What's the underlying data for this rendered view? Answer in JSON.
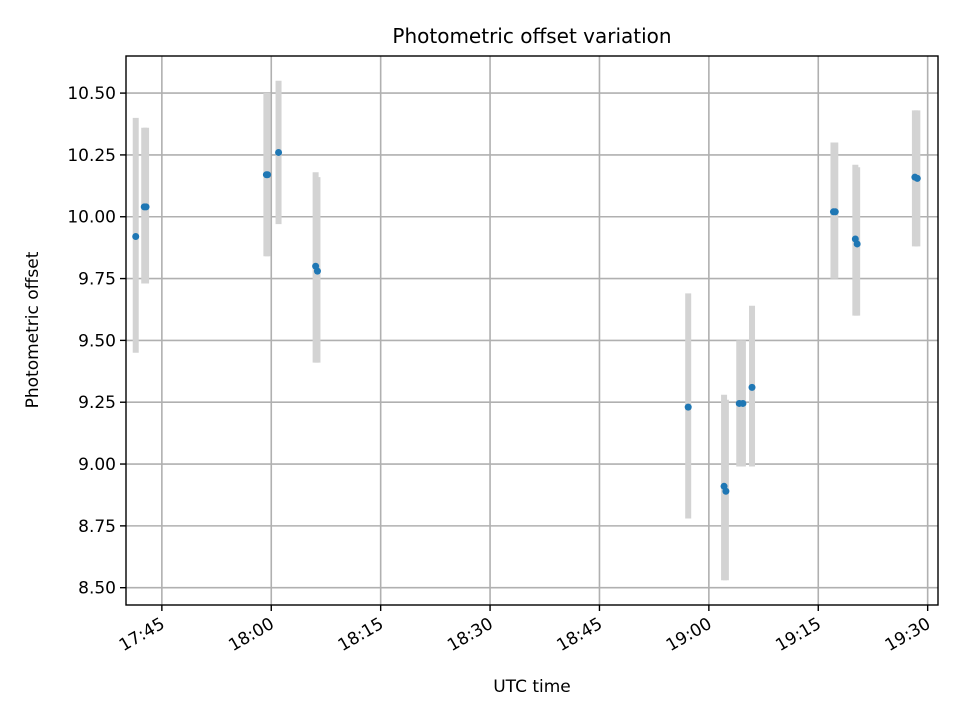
{
  "chart_data": {
    "type": "scatter",
    "title": "Photometric offset variation",
    "xlabel": "UTC time",
    "ylabel": "Photometric offset",
    "x_tick_labels": [
      "17:45",
      "18:00",
      "18:15",
      "18:30",
      "18:45",
      "19:00",
      "19:15",
      "19:30"
    ],
    "y_tick_labels": [
      "8.50",
      "8.75",
      "9.00",
      "9.25",
      "9.50",
      "9.75",
      "10.00",
      "10.25",
      "10.50"
    ],
    "ylim": [
      8.43,
      10.65
    ],
    "xlim": [
      "17:40:05",
      "19:31:25"
    ],
    "grid": true,
    "colors": {
      "point": "#1f77b4",
      "errorbar": "#d3d3d3"
    },
    "points": [
      {
        "x": "17:41:25",
        "y": 9.92,
        "ylow": 9.45,
        "yhigh": 10.4
      },
      {
        "x": "17:42:35",
        "y": 10.04,
        "ylow": 9.73,
        "yhigh": 10.36
      },
      {
        "x": "17:42:50",
        "y": 10.04,
        "ylow": 9.73,
        "yhigh": 10.36
      },
      {
        "x": "17:59:20",
        "y": 10.17,
        "ylow": 9.84,
        "yhigh": 10.5
      },
      {
        "x": "17:59:30",
        "y": 10.17,
        "ylow": 9.84,
        "yhigh": 10.5
      },
      {
        "x": "18:01:00",
        "y": 10.26,
        "ylow": 9.97,
        "yhigh": 10.55
      },
      {
        "x": "18:06:05",
        "y": 9.8,
        "ylow": 9.41,
        "yhigh": 10.18
      },
      {
        "x": "18:06:20",
        "y": 9.78,
        "ylow": 9.41,
        "yhigh": 10.16
      },
      {
        "x": "18:57:10",
        "y": 9.23,
        "ylow": 8.78,
        "yhigh": 9.69
      },
      {
        "x": "19:02:05",
        "y": 8.91,
        "ylow": 8.53,
        "yhigh": 9.28
      },
      {
        "x": "19:02:20",
        "y": 8.89,
        "ylow": 8.53,
        "yhigh": 9.26
      },
      {
        "x": "19:04:10",
        "y": 9.245,
        "ylow": 8.99,
        "yhigh": 9.5
      },
      {
        "x": "19:04:40",
        "y": 9.245,
        "ylow": 8.99,
        "yhigh": 9.5
      },
      {
        "x": "19:05:55",
        "y": 9.31,
        "ylow": 8.99,
        "yhigh": 9.64
      },
      {
        "x": "19:17:05",
        "y": 10.02,
        "ylow": 9.75,
        "yhigh": 10.3
      },
      {
        "x": "19:17:20",
        "y": 10.02,
        "ylow": 9.75,
        "yhigh": 10.3
      },
      {
        "x": "19:20:05",
        "y": 9.91,
        "ylow": 9.6,
        "yhigh": 10.21
      },
      {
        "x": "19:20:20",
        "y": 9.89,
        "ylow": 9.6,
        "yhigh": 10.2
      },
      {
        "x": "19:28:15",
        "y": 10.16,
        "ylow": 9.88,
        "yhigh": 10.43
      },
      {
        "x": "19:28:35",
        "y": 10.155,
        "ylow": 9.88,
        "yhigh": 10.43
      }
    ]
  }
}
